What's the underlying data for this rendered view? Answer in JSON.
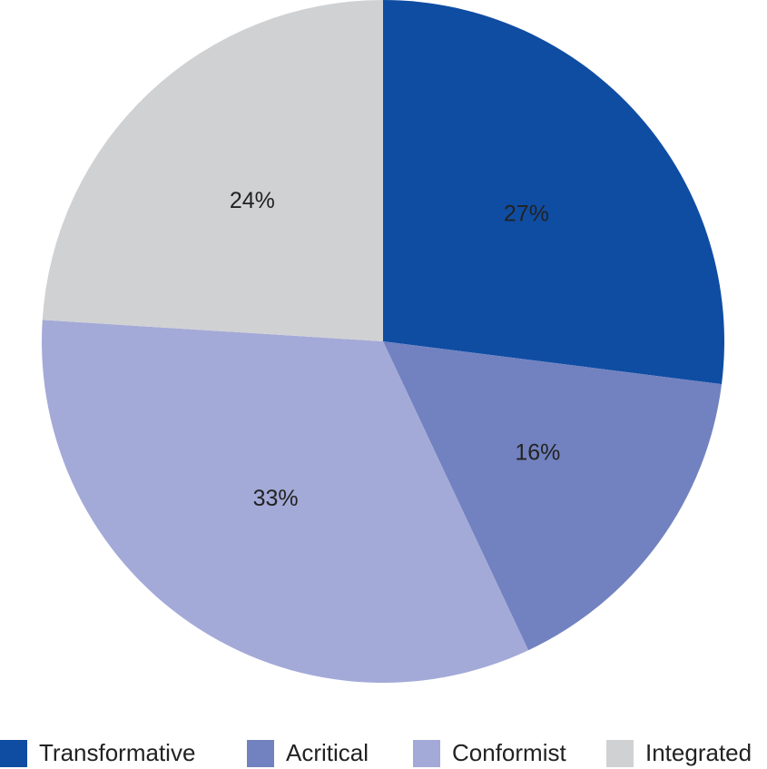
{
  "chart_data": {
    "type": "pie",
    "categories": [
      "Transformative",
      "Acritical",
      "Conformist",
      "Integrated"
    ],
    "values": [
      27,
      16,
      33,
      24
    ],
    "value_labels": [
      "27%",
      "16%",
      "33%",
      "24%"
    ],
    "colors": [
      "#0f4da3",
      "#7282c0",
      "#a3aad8",
      "#d0d1d3"
    ]
  }
}
